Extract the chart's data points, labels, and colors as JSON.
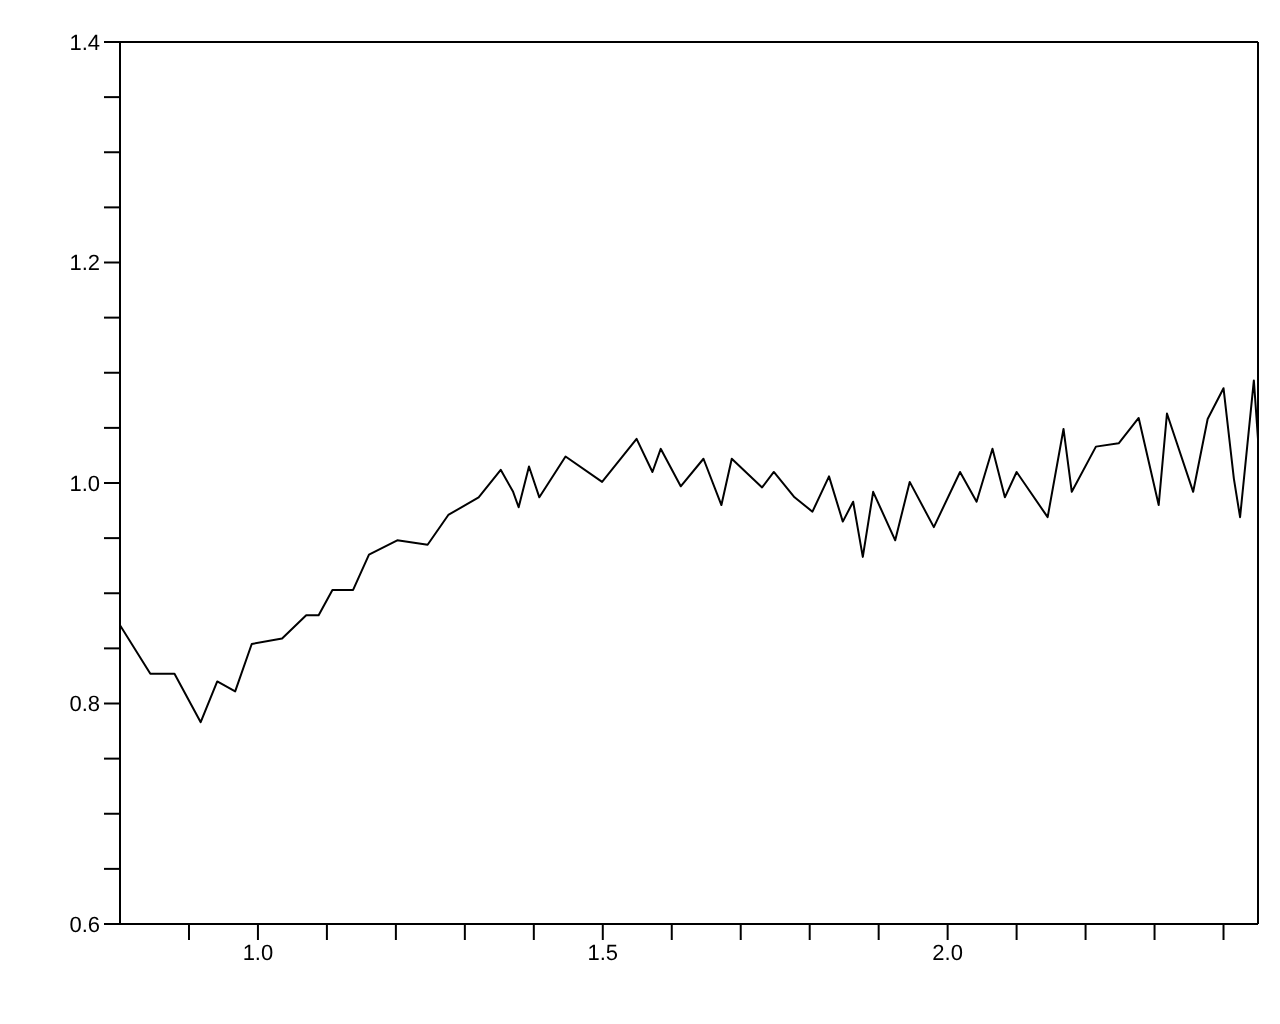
{
  "chart_data": {
    "type": "line",
    "x": [
      0.8,
      0.844,
      0.879,
      0.917,
      0.941,
      0.967,
      0.991,
      1.035,
      1.07,
      1.088,
      1.108,
      1.138,
      1.161,
      1.202,
      1.246,
      1.276,
      1.32,
      1.352,
      1.37,
      1.378,
      1.393,
      1.408,
      1.446,
      1.499,
      1.549,
      1.572,
      1.584,
      1.613,
      1.646,
      1.672,
      1.687,
      1.731,
      1.748,
      1.778,
      1.804,
      1.828,
      1.848,
      1.863,
      1.877,
      1.892,
      1.924,
      1.945,
      1.98,
      2.018,
      2.042,
      2.065,
      2.083,
      2.1,
      2.145,
      2.168,
      2.18,
      2.215,
      2.248,
      2.277,
      2.306,
      2.318,
      2.356,
      2.377,
      2.4,
      2.415,
      2.424,
      2.444,
      2.45
    ],
    "series": [
      {
        "color": "#000000",
        "values": [
          0.871,
          0.827,
          0.827,
          0.783,
          0.82,
          0.811,
          0.854,
          0.859,
          0.88,
          0.88,
          0.903,
          0.903,
          0.935,
          0.948,
          0.944,
          0.971,
          0.987,
          1.012,
          0.992,
          0.978,
          1.015,
          0.987,
          1.024,
          1.001,
          1.04,
          1.01,
          1.031,
          0.997,
          1.022,
          0.98,
          1.022,
          0.996,
          1.01,
          0.987,
          0.974,
          1.006,
          0.965,
          0.983,
          0.933,
          0.992,
          0.948,
          1.001,
          0.96,
          1.01,
          0.983,
          1.031,
          0.987,
          1.01,
          0.969,
          1.049,
          0.992,
          1.033,
          1.036,
          1.059,
          0.98,
          1.063,
          0.992,
          1.058,
          1.086,
          1.004,
          0.969,
          1.093,
          1.04
        ]
      }
    ],
    "xlim": [
      0.8,
      2.45
    ],
    "xticks": [
      {
        "value": 0.9,
        "label": null
      },
      {
        "value": 1.0,
        "label": "1.0"
      },
      {
        "value": 1.1,
        "label": null
      },
      {
        "value": 1.2,
        "label": null
      },
      {
        "value": 1.3,
        "label": null
      },
      {
        "value": 1.4,
        "label": null
      },
      1.5,
      {
        "value": 1.6,
        "label": null
      },
      {
        "value": 1.7,
        "label": null
      },
      {
        "value": 1.8,
        "label": null
      },
      {
        "value": 1.9,
        "label": null
      },
      {
        "value": 2.0,
        "label": "2.0"
      },
      {
        "value": 2.1,
        "label": null
      },
      {
        "value": 2.2,
        "label": null
      },
      {
        "value": 2.3,
        "label": null
      },
      {
        "value": 2.4,
        "label": null
      }
    ],
    "ylim": [
      0.6,
      1.4
    ],
    "yticks": [
      0.6,
      {
        "value": 0.65,
        "label": null
      },
      {
        "value": 0.7,
        "label": null
      },
      {
        "value": 0.75,
        "label": null
      },
      0.8,
      {
        "value": 0.85,
        "label": null
      },
      {
        "value": 0.9,
        "label": null
      },
      {
        "value": 0.95,
        "label": null
      },
      {
        "value": 1.0,
        "label": "1.0"
      },
      {
        "value": 1.05,
        "label": null
      },
      {
        "value": 1.1,
        "label": null
      },
      {
        "value": 1.15,
        "label": null
      },
      1.2,
      {
        "value": 1.25,
        "label": null
      },
      {
        "value": 1.3,
        "label": null
      },
      {
        "value": 1.35,
        "label": null
      },
      1.4
    ],
    "grid": false,
    "legend": false,
    "marker": "none",
    "line_style": "solid"
  }
}
